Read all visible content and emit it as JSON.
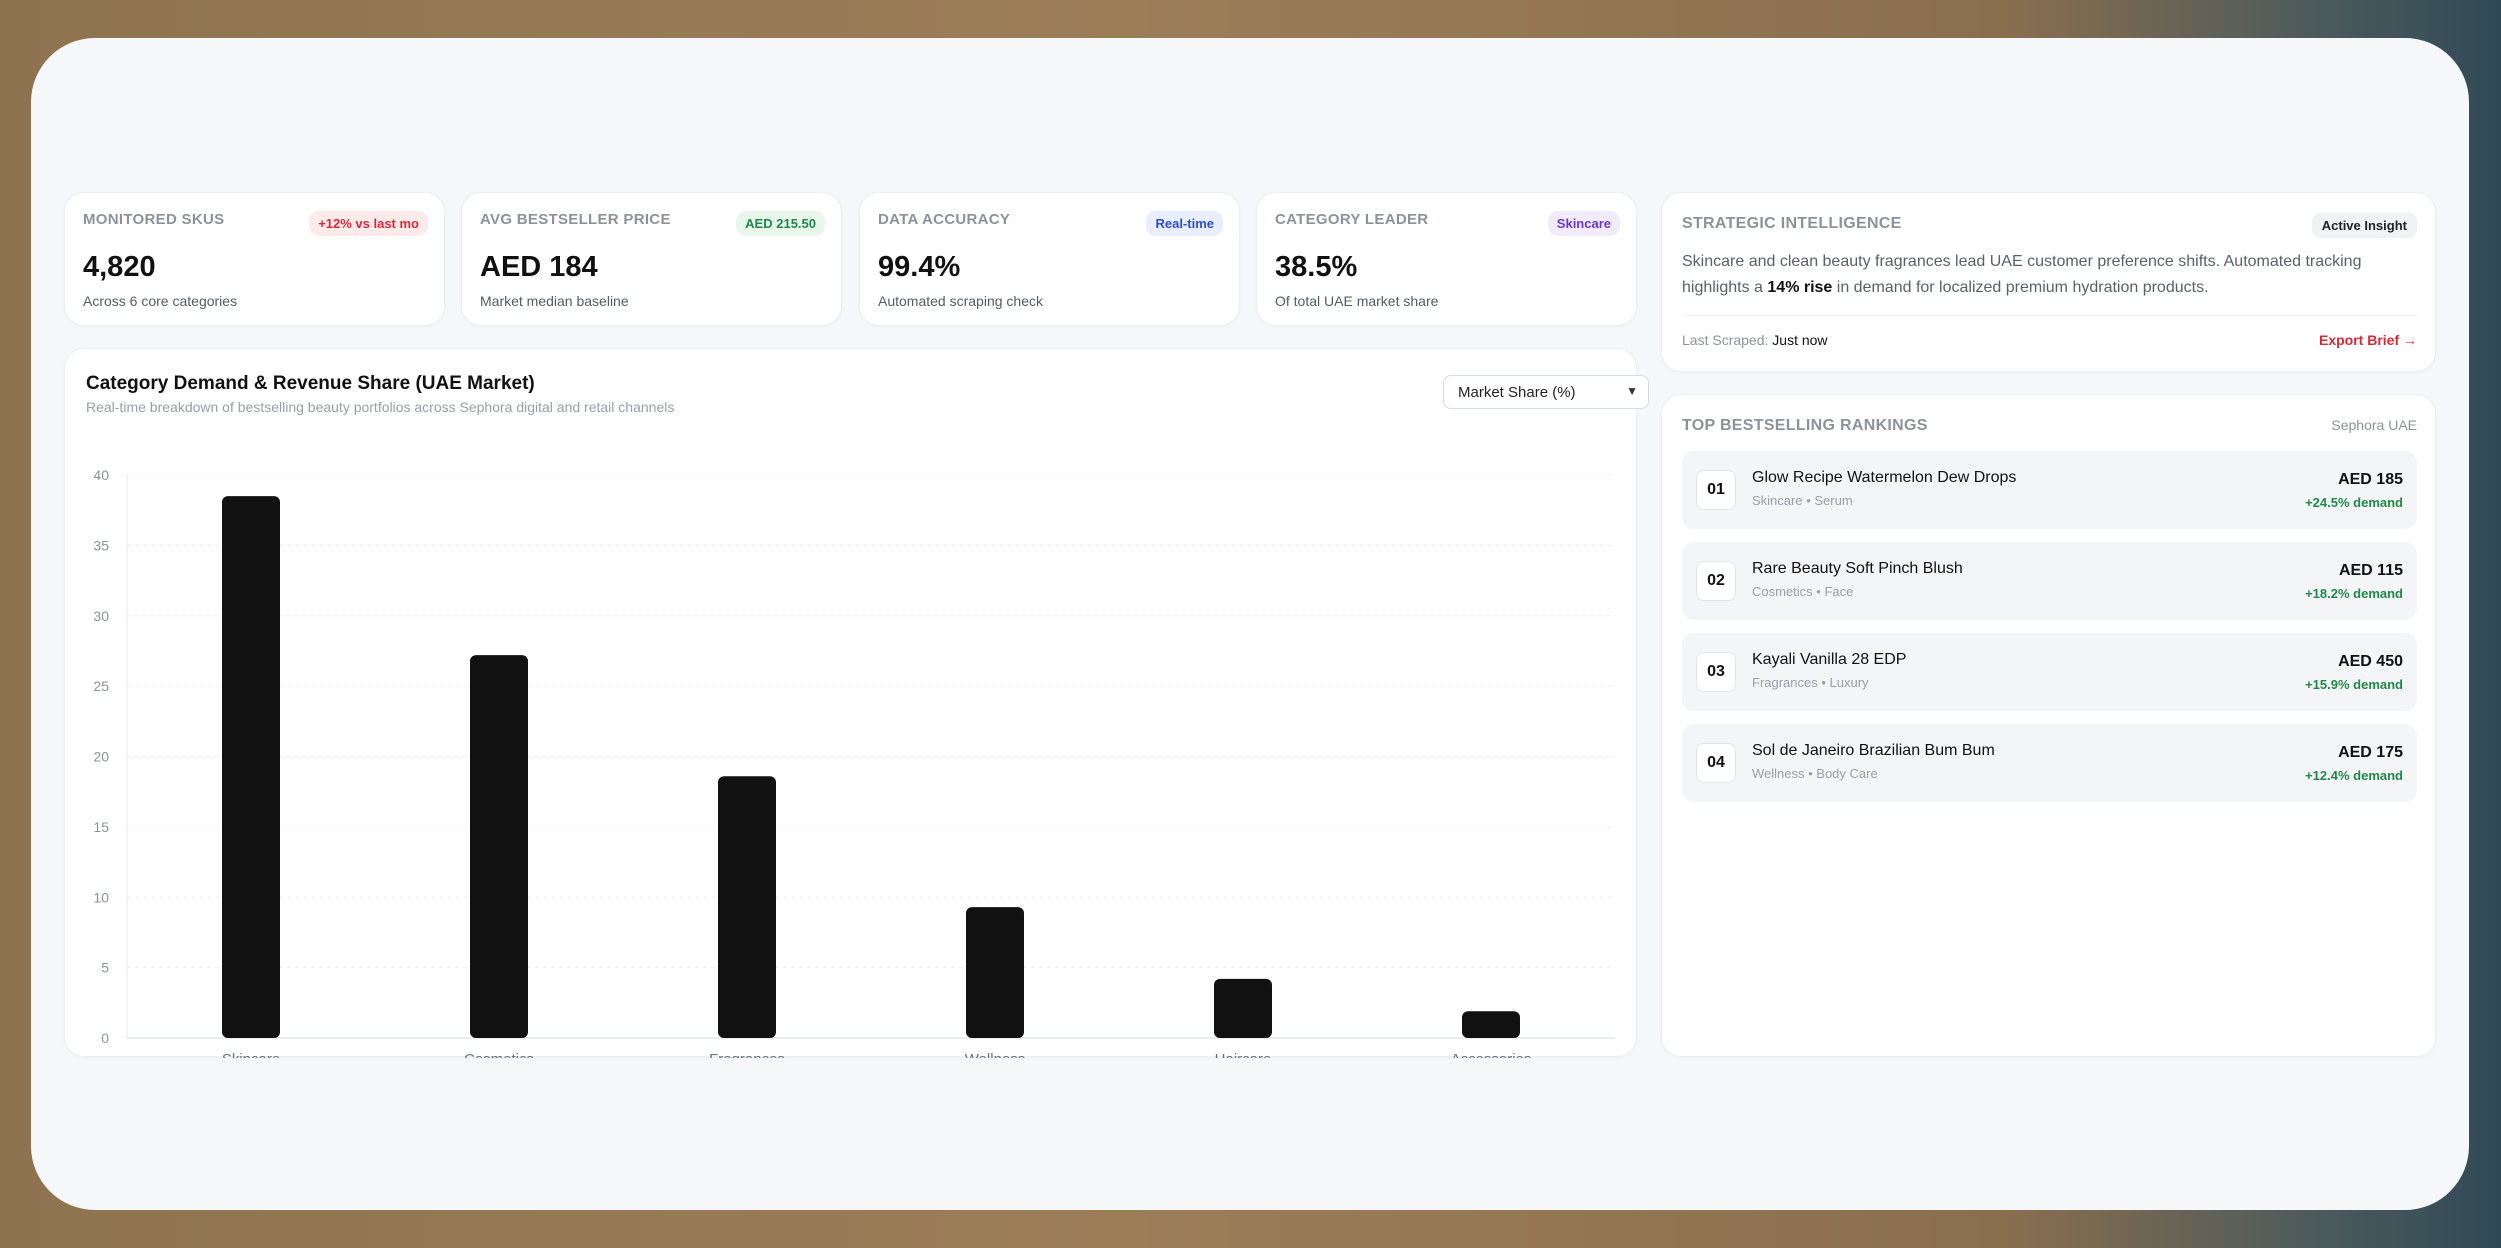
{
  "kpis": [
    {
      "label": "MONITORED SKUS",
      "badge": "+12% vs last mo",
      "value": "4,820",
      "sub": "Across 6 core categories"
    },
    {
      "label": "AVG BESTSELLER PRICE",
      "badge": "AED 215.50",
      "value": "AED 184",
      "sub": "Market median baseline"
    },
    {
      "label": "DATA ACCURACY",
      "badge": "Real-time",
      "value": "99.4%",
      "sub": "Automated scraping check"
    },
    {
      "label": "CATEGORY LEADER",
      "badge": "Skincare",
      "value": "38.5%",
      "sub": "Of total UAE market share"
    }
  ],
  "chart_panel": {
    "title": "Category Demand & Revenue Share (UAE Market)",
    "subtitle": "Real-time breakdown of bestselling beauty portfolios across Sephora digital and retail channels",
    "select_value": "Market Share (%)"
  },
  "chart_data": {
    "type": "bar",
    "categories": [
      "Skincare",
      "Cosmetics",
      "Fragrances",
      "Wellness",
      "Haircare",
      "Accessories"
    ],
    "values": [
      38.5,
      27.2,
      18.6,
      9.3,
      4.2,
      1.9
    ],
    "ylim": [
      0,
      40
    ],
    "yticks": [
      0,
      5,
      10,
      15,
      20,
      25,
      30,
      35,
      40
    ],
    "grid": true,
    "bar_color": "#111111"
  },
  "strategic": {
    "label": "STRATEGIC INTELLIGENCE",
    "pill": "Active Insight",
    "text_before": "Skincare and clean beauty fragrances lead UAE customer preference shifts. Automated tracking highlights a ",
    "text_bold": "14% rise",
    "text_after": " in demand for localized premium hydration products.",
    "scraped_label": "Last Scraped:",
    "scraped_value": "Just now",
    "export_label": "Export Brief →"
  },
  "rankings": {
    "label": "TOP BESTSELLING RANKINGS",
    "source": "Sephora UAE",
    "items": [
      {
        "rank": "01",
        "name": "Glow Recipe Watermelon Dew Drops",
        "category": "Skincare • Serum",
        "price": "AED 185",
        "trend": "+24.5% demand"
      },
      {
        "rank": "02",
        "name": "Rare Beauty Soft Pinch Blush",
        "category": "Cosmetics • Face",
        "price": "AED 115",
        "trend": "+18.2% demand"
      },
      {
        "rank": "03",
        "name": "Kayali Vanilla 28 EDP",
        "category": "Fragrances • Luxury",
        "price": "AED 450",
        "trend": "+15.9% demand"
      },
      {
        "rank": "04",
        "name": "Sol de Janeiro Brazilian Bum Bum",
        "category": "Wellness • Body Care",
        "price": "AED 175",
        "trend": "+12.4% demand"
      }
    ]
  }
}
